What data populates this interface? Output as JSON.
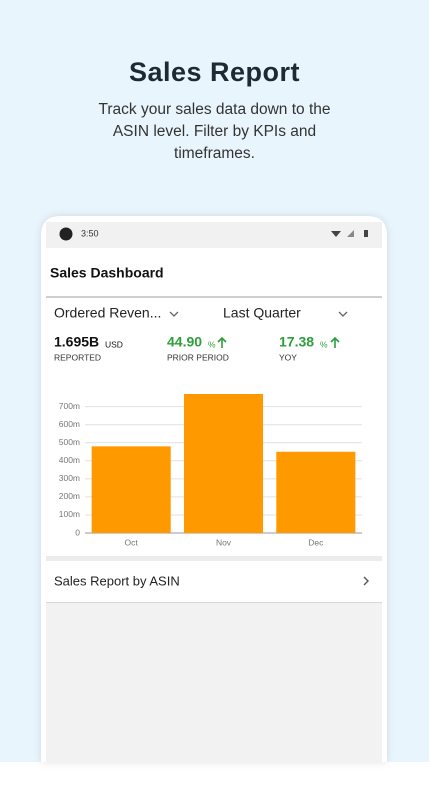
{
  "header": {
    "title": "Sales Report",
    "subtitle_lines": [
      "Track your sales data down to the",
      "ASIN level. Filter by KPIs and",
      "timeframes."
    ]
  },
  "status_bar": {
    "time": "3:50"
  },
  "dashboard": {
    "title": "Sales Dashboard",
    "filters": [
      "Ordered Reven...",
      "Last Quarter"
    ],
    "kpis": [
      {
        "value": "1.695B",
        "unit": "USD",
        "label": "REPORTED"
      },
      {
        "value": "44.90",
        "unit": "%",
        "label": "PRIOR PERIOD"
      },
      {
        "value": "17.38",
        "unit": "%",
        "label": "YOY"
      }
    ],
    "link": "Sales Report by ASIN"
  },
  "chart_data": {
    "type": "bar",
    "categories": [
      "Oct",
      "Nov",
      "Dec"
    ],
    "values": [
      480,
      770,
      450
    ],
    "color": "#ff9900",
    "ylim": [
      0,
      770
    ],
    "yticks": [
      0,
      {
        "value": 100,
        "label": "100m"
      },
      {
        "value": 200,
        "label": "200m"
      },
      {
        "value": 300,
        "label": "300m"
      },
      {
        "value": 400,
        "label": "400m"
      },
      {
        "value": 500,
        "label": "500m"
      },
      {
        "value": 600,
        "label": "600m"
      },
      {
        "value": 700,
        "label": "700m"
      }
    ],
    "grid": true
  }
}
